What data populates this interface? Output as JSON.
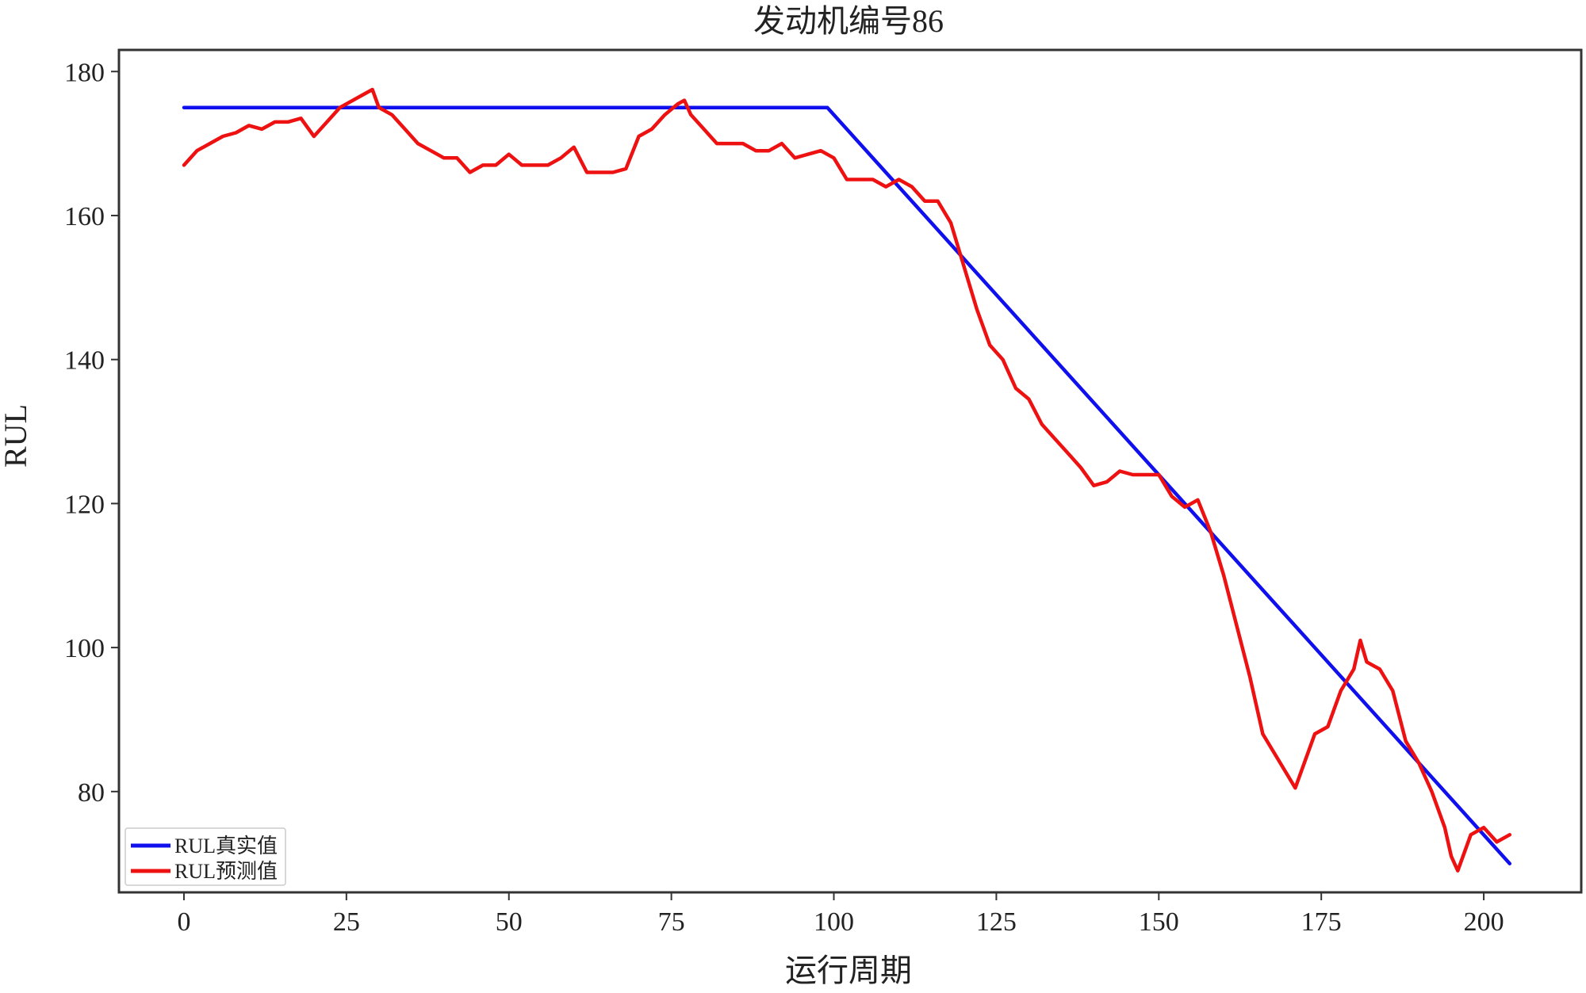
{
  "chart_data": {
    "type": "line",
    "title": "发动机编号86",
    "xlabel": "运行周期",
    "ylabel": "RUL",
    "xlim": [
      -10,
      215
    ],
    "ylim": [
      66,
      183
    ],
    "xticks": [
      0,
      25,
      50,
      75,
      100,
      125,
      150,
      175,
      200
    ],
    "yticks": [
      80,
      100,
      120,
      140,
      160,
      180
    ],
    "grid": false,
    "legend_position": "bottom-left",
    "series": [
      {
        "name": "RUL真实值",
        "color": "#1010ee",
        "x": [
          0,
          99,
          204
        ],
        "y": [
          175,
          175,
          70
        ]
      },
      {
        "name": "RUL预测值",
        "color": "#ee1111",
        "x": [
          0,
          2,
          4,
          6,
          8,
          10,
          12,
          14,
          16,
          18,
          20,
          22,
          24,
          26,
          28,
          29,
          30,
          32,
          34,
          36,
          38,
          40,
          42,
          44,
          46,
          48,
          50,
          52,
          54,
          56,
          58,
          60,
          62,
          64,
          66,
          68,
          70,
          72,
          74,
          76,
          77,
          78,
          80,
          82,
          84,
          86,
          88,
          90,
          92,
          94,
          96,
          98,
          100,
          102,
          104,
          106,
          108,
          110,
          112,
          114,
          116,
          118,
          120,
          122,
          124,
          126,
          128,
          130,
          132,
          134,
          136,
          138,
          140,
          142,
          144,
          146,
          148,
          150,
          152,
          154,
          156,
          158,
          160,
          162,
          164,
          166,
          168,
          170,
          171,
          172,
          174,
          176,
          178,
          180,
          181,
          182,
          184,
          186,
          188,
          190,
          192,
          194,
          195,
          196,
          198,
          200,
          202,
          204
        ],
        "y": [
          167,
          169,
          170,
          171,
          171.5,
          172.5,
          172,
          173,
          173,
          173.5,
          171,
          173,
          175,
          176,
          177,
          177.5,
          175,
          174,
          172,
          170,
          169,
          168,
          168,
          166,
          167,
          167,
          168.5,
          167,
          167,
          167,
          168,
          169.5,
          166,
          166,
          166,
          166.5,
          171,
          172,
          174,
          175.5,
          176,
          174,
          172,
          170,
          170,
          170,
          169,
          169,
          170,
          168,
          168.5,
          169,
          168,
          165,
          165,
          165,
          164,
          165,
          164,
          162,
          162,
          159,
          153,
          147,
          142,
          140,
          136,
          134.5,
          131,
          129,
          127,
          125,
          122.5,
          123,
          124.5,
          124,
          124,
          124,
          121,
          119.5,
          120.5,
          116,
          110,
          103,
          96,
          88,
          85,
          82,
          80.5,
          83,
          88,
          89,
          94,
          97,
          101,
          98,
          97,
          94,
          87,
          84,
          80,
          75,
          71,
          69,
          74,
          75,
          73,
          74
        ]
      }
    ]
  }
}
